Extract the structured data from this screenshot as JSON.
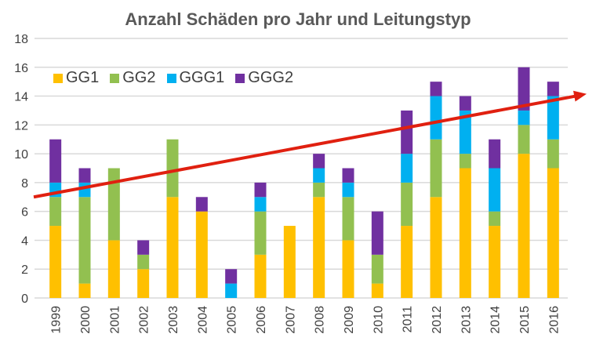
{
  "chart_data": {
    "type": "bar",
    "stacked": true,
    "title": "Anzahl Schäden pro Jahr und Leitungstyp",
    "xlabel": "",
    "ylabel": "",
    "ylim": [
      0,
      18
    ],
    "yticks": [
      0,
      2,
      4,
      6,
      8,
      10,
      12,
      14,
      16,
      18
    ],
    "grid": true,
    "legend_position": "top-left",
    "categories": [
      "1999",
      "2000",
      "2001",
      "2002",
      "2003",
      "2004",
      "2005",
      "2006",
      "2007",
      "2008",
      "2009",
      "2010",
      "2011",
      "2012",
      "2013",
      "2014",
      "2015",
      "2016"
    ],
    "series": [
      {
        "name": "GG1",
        "color": "#FFC000",
        "values": [
          5,
          1,
          4,
          2,
          7,
          6,
          0,
          3,
          5,
          7,
          4,
          1,
          5,
          7,
          9,
          5,
          10,
          9
        ]
      },
      {
        "name": "GG2",
        "color": "#92C050",
        "values": [
          2,
          6,
          5,
          1,
          4,
          0,
          0,
          3,
          0,
          1,
          3,
          2,
          3,
          4,
          1,
          1,
          2,
          2
        ]
      },
      {
        "name": "GGG1",
        "color": "#00B0F0",
        "values": [
          1,
          1,
          0,
          0,
          0,
          0,
          1,
          1,
          0,
          1,
          1,
          0,
          2,
          3,
          3,
          3,
          1,
          3
        ]
      },
      {
        "name": "GGG2",
        "color": "#7030A0",
        "values": [
          3,
          1,
          0,
          1,
          0,
          1,
          1,
          1,
          0,
          1,
          1,
          3,
          3,
          1,
          1,
          2,
          3,
          1
        ]
      }
    ],
    "trend_arrow": {
      "color": "#E02010",
      "start_value": 7.0,
      "end_value": 14.1
    }
  }
}
